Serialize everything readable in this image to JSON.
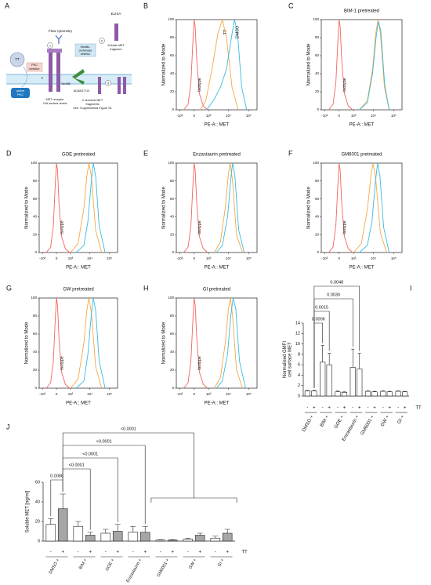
{
  "diagram": {
    "label": "A",
    "flow_cytometry": "Flow cytometry",
    "elisa": "ELISA",
    "mp_inhibitor": [
      "Metallo-",
      "proteinase",
      "inhibitor"
    ],
    "soluble": [
      "Soluble MET",
      "fragment"
    ],
    "pkc_inhibitor": [
      "PKC",
      "inhibitor"
    ],
    "tt": "TT",
    "active_pkc": [
      "active",
      "PKC"
    ],
    "met_receptor": [
      "MET receptor",
      "Cell surface levels"
    ],
    "adam": "ADAM17/10",
    "c_terminal": [
      "C-terminal MET",
      "fragments",
      "See: Supplemental Figure S1"
    ],
    "steps": [
      "1",
      "2",
      "3"
    ],
    "p": "P",
    "ser": "Ser985"
  },
  "chart_data": [
    {
      "type": "flow_histogram",
      "label": "B",
      "ylabel": "Normalized to Mode",
      "xlabel": "PE-A:: MET",
      "xscale": "biexponential",
      "xlim": [
        -1500,
        260000
      ],
      "ylim": [
        0,
        100
      ],
      "yticks": [
        0,
        20,
        40,
        60,
        80,
        100
      ],
      "xticks": [
        {
          "value": -1000,
          "label": "-10³"
        },
        0,
        {
          "value": 1000,
          "label": "10³"
        },
        {
          "value": 10000,
          "label": "10⁴"
        },
        {
          "value": 100000,
          "label": "10⁵"
        }
      ],
      "series": [
        {
          "name": "Isotype",
          "color": "#f2645c",
          "x": [
            -600,
            -300,
            -150,
            -50,
            0,
            50,
            120,
            250,
            500,
            900
          ],
          "values": [
            0,
            6,
            30,
            80,
            100,
            92,
            55,
            18,
            4,
            0
          ]
        },
        {
          "name": "TT",
          "color": "#f5a844",
          "x": [
            300,
            700,
            1500,
            3000,
            5000,
            8000,
            15000,
            30000
          ],
          "values": [
            0,
            10,
            45,
            85,
            100,
            80,
            25,
            0
          ]
        },
        {
          "name": "DMSO",
          "color": "#3bbbe0",
          "x": [
            800,
            2000,
            4000,
            8000,
            14000,
            20000,
            28000,
            45000,
            80000
          ],
          "values": [
            0,
            12,
            25,
            45,
            80,
            100,
            85,
            25,
            0
          ]
        }
      ]
    },
    {
      "type": "flow_histogram",
      "label": "C",
      "title": "BIM-1 pretreated",
      "ylabel": "Normalized to Mode",
      "xlabel": "PE-A:: MET",
      "xscale": "biexponential",
      "xlim": [
        -1500,
        260000
      ],
      "ylim": [
        0,
        100
      ],
      "yticks": [
        0,
        20,
        40,
        60,
        80,
        100
      ],
      "xticks": [
        {
          "value": -1000,
          "label": "-10³"
        },
        0,
        {
          "value": 1000,
          "label": "10³"
        },
        {
          "value": 10000,
          "label": "10⁴"
        },
        {
          "value": 100000,
          "label": "10⁵"
        }
      ],
      "series": [
        {
          "name": "Isotype",
          "color": "#f2645c",
          "x": [
            -600,
            -300,
            -150,
            -50,
            0,
            50,
            120,
            250,
            500,
            900
          ],
          "values": [
            0,
            6,
            30,
            80,
            100,
            92,
            55,
            18,
            4,
            0
          ]
        },
        {
          "color": "#f5a844",
          "x": [
            2000,
            5000,
            9000,
            13000,
            17000,
            22000,
            35000,
            60000
          ],
          "values": [
            0,
            10,
            45,
            85,
            100,
            85,
            25,
            0
          ]
        },
        {
          "color": "#3bbbe0",
          "x": [
            2000,
            5000,
            9000,
            13500,
            17500,
            23000,
            36000,
            60000
          ],
          "values": [
            0,
            8,
            40,
            80,
            98,
            88,
            28,
            0
          ]
        }
      ]
    },
    {
      "type": "flow_histogram",
      "label": "D",
      "title": "GOE pretreated",
      "ylabel": "Normalized to Mode",
      "xlabel": "PE-A:: MET",
      "xscale": "biexponential",
      "xlim": [
        -1500,
        260000
      ],
      "ylim": [
        0,
        100
      ],
      "yticks": [
        0,
        20,
        40,
        60,
        80,
        100
      ],
      "xticks": [
        {
          "value": -1000,
          "label": "-10³"
        },
        0,
        {
          "value": 1000,
          "label": "10³"
        },
        {
          "value": 10000,
          "label": "10⁴"
        },
        {
          "value": 100000,
          "label": "10⁵"
        }
      ],
      "series": [
        {
          "name": "Isotype",
          "color": "#f2645c",
          "x": [
            -600,
            -300,
            -150,
            -50,
            0,
            50,
            120,
            250,
            500,
            900
          ],
          "values": [
            0,
            6,
            30,
            80,
            100,
            92,
            55,
            18,
            4,
            0
          ]
        },
        {
          "color": "#f5a844",
          "x": [
            1000,
            2500,
            5000,
            7000,
            9000,
            12000,
            20000,
            40000
          ],
          "values": [
            0,
            10,
            50,
            85,
            100,
            85,
            25,
            0
          ]
        },
        {
          "color": "#3bbbe0",
          "x": [
            2000,
            5000,
            8000,
            12000,
            15000,
            20000,
            30000,
            60000
          ],
          "values": [
            0,
            8,
            35,
            80,
            100,
            85,
            30,
            0
          ]
        }
      ]
    },
    {
      "type": "flow_histogram",
      "label": "E",
      "title": "Enzastaurin pretreated",
      "ylabel": "Normalized to Mode",
      "xlabel": "PE-A:: MET",
      "xscale": "biexponential",
      "xlim": [
        -1500,
        260000
      ],
      "ylim": [
        0,
        100
      ],
      "yticks": [
        0,
        20,
        40,
        60,
        80,
        100
      ],
      "xticks": [
        {
          "value": -1000,
          "label": "-10³"
        },
        0,
        {
          "value": 1000,
          "label": "10³"
        },
        {
          "value": 10000,
          "label": "10⁴"
        },
        {
          "value": 100000,
          "label": "10⁵"
        }
      ],
      "series": [
        {
          "name": "Isotype",
          "color": "#f2645c",
          "x": [
            -600,
            -300,
            -150,
            -50,
            0,
            50,
            120,
            250,
            500,
            900
          ],
          "values": [
            0,
            6,
            30,
            80,
            100,
            92,
            55,
            18,
            4,
            0
          ]
        },
        {
          "color": "#f5a844",
          "x": [
            2000,
            4000,
            7000,
            10000,
            12000,
            16000,
            25000,
            50000
          ],
          "values": [
            0,
            12,
            50,
            88,
            100,
            80,
            20,
            0
          ]
        },
        {
          "color": "#3bbbe0",
          "x": [
            2500,
            5000,
            9000,
            13000,
            16000,
            21000,
            32000,
            60000
          ],
          "values": [
            0,
            8,
            40,
            82,
            100,
            85,
            25,
            0
          ]
        }
      ]
    },
    {
      "type": "flow_histogram",
      "label": "F",
      "title": "GM6001 pretreated",
      "ylabel": "Normalized to Mode",
      "xlabel": "PE-A:: MET",
      "xscale": "biexponential",
      "xlim": [
        -1500,
        260000
      ],
      "ylim": [
        0,
        100
      ],
      "yticks": [
        0,
        20,
        40,
        60,
        80,
        100
      ],
      "xticks": [
        {
          "value": -1000,
          "label": "-10³"
        },
        0,
        {
          "value": 1000,
          "label": "10³"
        },
        {
          "value": 10000,
          "label": "10⁴"
        },
        {
          "value": 100000,
          "label": "10⁵"
        }
      ],
      "series": [
        {
          "name": "Isotype",
          "color": "#f2645c",
          "x": [
            -600,
            -300,
            -150,
            -50,
            0,
            50,
            120,
            250,
            500,
            900
          ],
          "values": [
            0,
            6,
            30,
            80,
            100,
            92,
            55,
            18,
            4,
            0
          ]
        },
        {
          "color": "#f5a844",
          "x": [
            1000,
            2500,
            5000,
            7500,
            9500,
            13000,
            22000,
            45000
          ],
          "values": [
            0,
            10,
            48,
            85,
            100,
            82,
            22,
            0
          ]
        },
        {
          "color": "#3bbbe0",
          "x": [
            2000,
            5000,
            8500,
            12500,
            16000,
            21000,
            32000,
            60000
          ],
          "values": [
            0,
            8,
            35,
            78,
            100,
            86,
            28,
            0
          ]
        }
      ]
    },
    {
      "type": "flow_histogram",
      "label": "G",
      "title": "GW pretreated",
      "ylabel": "Normalized to Mode",
      "xlabel": "PE-A:: MET",
      "xscale": "biexponential",
      "xlim": [
        -1500,
        260000
      ],
      "ylim": [
        0,
        100
      ],
      "yticks": [
        0,
        20,
        40,
        60,
        80,
        100
      ],
      "xticks": [
        {
          "value": -1000,
          "label": "-10³"
        },
        0,
        {
          "value": 1000,
          "label": "10³"
        },
        {
          "value": 10000,
          "label": "10⁴"
        },
        {
          "value": 100000,
          "label": "10⁵"
        }
      ],
      "series": [
        {
          "name": "Isotype",
          "color": "#f2645c",
          "x": [
            -600,
            -300,
            -150,
            -50,
            0,
            50,
            120,
            250,
            500,
            900
          ],
          "values": [
            0,
            6,
            30,
            80,
            100,
            92,
            55,
            18,
            4,
            0
          ]
        },
        {
          "color": "#f5a844",
          "x": [
            1000,
            2500,
            5000,
            7000,
            9000,
            12000,
            20000,
            40000
          ],
          "values": [
            0,
            10,
            50,
            86,
            100,
            84,
            24,
            0
          ]
        },
        {
          "color": "#3bbbe0",
          "x": [
            2000,
            5000,
            8000,
            12000,
            15000,
            20000,
            30000,
            60000
          ],
          "values": [
            0,
            8,
            38,
            82,
            100,
            86,
            30,
            0
          ]
        }
      ]
    },
    {
      "type": "flow_histogram",
      "label": "H",
      "title": "GI pretreated",
      "ylabel": "Normalized to Mode",
      "xlabel": "PE-A:: MET",
      "xscale": "biexponential",
      "xlim": [
        -1500,
        260000
      ],
      "ylim": [
        0,
        100
      ],
      "yticks": [
        0,
        20,
        40,
        60,
        80,
        100
      ],
      "xticks": [
        {
          "value": -1000,
          "label": "-10³"
        },
        0,
        {
          "value": 1000,
          "label": "10³"
        },
        {
          "value": 10000,
          "label": "10⁴"
        },
        {
          "value": 100000,
          "label": "10⁵"
        }
      ],
      "series": [
        {
          "name": "Isotype",
          "color": "#f2645c",
          "x": [
            -600,
            -300,
            -150,
            -50,
            0,
            50,
            120,
            250,
            500,
            900
          ],
          "values": [
            0,
            6,
            30,
            80,
            100,
            92,
            55,
            18,
            4,
            0
          ]
        },
        {
          "color": "#f5a844",
          "x": [
            2000,
            4000,
            7000,
            10000,
            12500,
            16000,
            25000,
            50000
          ],
          "values": [
            0,
            12,
            50,
            88,
            100,
            80,
            20,
            0
          ]
        },
        {
          "color": "#3bbbe0",
          "x": [
            2500,
            5000,
            9000,
            13000,
            17000,
            23000,
            35000,
            70000
          ],
          "values": [
            0,
            8,
            38,
            80,
            100,
            88,
            30,
            0
          ]
        }
      ]
    },
    {
      "type": "bar",
      "label": "I",
      "ylabel": [
        "Normalised GMFI",
        "cell surface MET"
      ],
      "ylim": [
        0,
        14
      ],
      "yticks": [
        0,
        2,
        4,
        6,
        8,
        10,
        12,
        14
      ],
      "categories": [
        "DMSO +",
        "BIM +",
        "GOE +",
        "Enzastaurin +",
        "GM6001 +",
        "GW +",
        "GI +"
      ],
      "condition_label": "TT",
      "series": [
        {
          "name": "-",
          "color": "#ffffff",
          "values": [
            1,
            6.5,
            0.8,
            5.5,
            0.9,
            0.9,
            0.9
          ],
          "errors": [
            0.1,
            3.2,
            0.15,
            3.5,
            0.1,
            0.1,
            0.1
          ]
        },
        {
          "name": "+",
          "color": "#ffffff",
          "values": [
            1,
            6,
            0.7,
            5.2,
            0.8,
            0.8,
            0.8
          ],
          "errors": [
            0.1,
            2.2,
            0.1,
            3,
            0.1,
            0.1,
            0.1
          ]
        }
      ],
      "annotations": [
        "0.0006",
        "0.0015",
        "0.0030",
        "0.0048"
      ]
    },
    {
      "type": "bar",
      "label": "J",
      "ylabel": [
        "Soluble MET [ng/ml]"
      ],
      "ylim": [
        0,
        60
      ],
      "yticks": [
        0,
        20,
        40,
        60
      ],
      "categories": [
        "DMSO +",
        "BIM +",
        "GOE +",
        "Enzastaurin +",
        "GM6001 +",
        "GW +",
        "GI +"
      ],
      "condition_label": "TT",
      "series": [
        {
          "name": "-",
          "color": "#ffffff",
          "values": [
            17,
            15,
            8,
            9,
            1,
            2,
            3
          ],
          "errors": [
            6,
            5,
            4,
            6,
            0.5,
            1,
            2
          ]
        },
        {
          "name": "+",
          "color": "#a6a6a6",
          "values": [
            33,
            6,
            10,
            9,
            1,
            6,
            8
          ],
          "errors": [
            15,
            3,
            7,
            6,
            0.5,
            2,
            4
          ]
        }
      ],
      "annotations": [
        "0.0088",
        "<0.0001",
        "<0.0001",
        "<0.0001",
        "<0.0001"
      ]
    }
  ]
}
